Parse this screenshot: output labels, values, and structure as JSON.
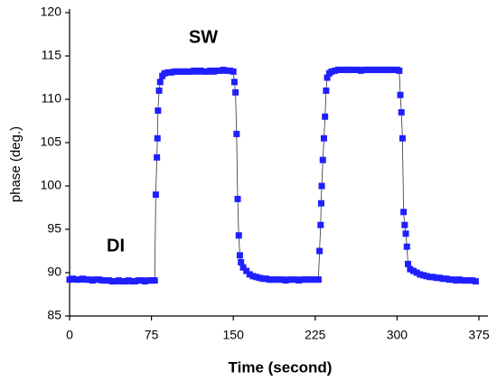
{
  "chart_data": {
    "type": "scatter",
    "x_label": "Time (second)",
    "y_label": "phase (deg.)",
    "annotations": [
      "SW",
      "DI"
    ],
    "xlim": [
      0,
      375
    ],
    "ylim": [
      85,
      120
    ],
    "xticks": [
      0,
      75,
      150,
      225,
      300,
      375
    ],
    "yticks": [
      85,
      90,
      95,
      100,
      105,
      110,
      115,
      120
    ],
    "grid": false,
    "series": [
      {
        "color": "#1f1fff",
        "x": [
          0,
          3,
          6,
          9,
          12,
          15,
          18,
          21,
          24,
          27,
          30,
          33,
          36,
          39,
          42,
          45,
          48,
          51,
          54,
          57,
          60,
          63,
          66,
          69,
          72,
          75,
          78,
          79,
          80,
          80.5,
          81,
          82,
          83,
          85,
          87,
          90,
          93,
          96,
          99,
          102,
          105,
          108,
          111,
          114,
          117,
          120,
          123,
          126,
          129,
          132,
          135,
          138,
          141,
          144,
          147,
          150,
          151,
          152,
          153,
          154,
          155,
          156,
          157,
          159,
          162,
          165,
          168,
          171,
          174,
          177,
          180,
          183,
          186,
          189,
          192,
          195,
          198,
          201,
          204,
          207,
          210,
          213,
          216,
          219,
          222,
          225,
          228,
          229,
          230,
          230.5,
          231,
          232,
          233,
          234,
          235,
          236,
          238,
          240,
          243,
          246,
          249,
          252,
          255,
          258,
          261,
          264,
          267,
          270,
          273,
          276,
          279,
          282,
          285,
          288,
          291,
          294,
          297,
          300,
          302,
          303,
          304,
          305,
          306,
          307,
          308,
          309,
          310,
          312,
          315,
          318,
          321,
          324,
          327,
          330,
          333,
          336,
          339,
          342,
          345,
          348,
          351,
          354,
          357,
          360,
          363,
          366,
          369,
          372
        ],
        "values": [
          89.2,
          89.3,
          89.2,
          89.2,
          89.3,
          89.2,
          89.2,
          89.1,
          89.2,
          89.2,
          89.1,
          89.1,
          89.1,
          89.0,
          89.0,
          89.1,
          89.0,
          89.0,
          89.1,
          89.0,
          89.0,
          89.1,
          89.1,
          89.0,
          89.1,
          89.1,
          89.1,
          99,
          103.3,
          105.5,
          108.7,
          111,
          112,
          112.7,
          113,
          113.1,
          113.1,
          113.2,
          113.2,
          113.2,
          113.2,
          113.2,
          113.2,
          113.3,
          113.2,
          113.3,
          113.2,
          113.2,
          113.3,
          113.2,
          113.3,
          113.3,
          113.4,
          113.3,
          113.3,
          113.2,
          112,
          110.8,
          106,
          98.5,
          94.3,
          92,
          91.2,
          90.6,
          90.2,
          89.8,
          89.6,
          89.5,
          89.4,
          89.3,
          89.3,
          89.2,
          89.2,
          89.2,
          89.2,
          89.2,
          89.1,
          89.2,
          89.2,
          89.2,
          89.1,
          89.2,
          89.2,
          89.2,
          89.2,
          89.2,
          89.2,
          92.5,
          95.5,
          98,
          100,
          103,
          105.5,
          108,
          111,
          112.5,
          113,
          113.2,
          113.3,
          113.4,
          113.4,
          113.4,
          113.4,
          113.4,
          113.4,
          113.4,
          113.3,
          113.4,
          113.4,
          113.4,
          113.4,
          113.4,
          113.4,
          113.4,
          113.4,
          113.4,
          113.4,
          113.4,
          113.3,
          110.5,
          108.5,
          105.5,
          97,
          95.5,
          94.5,
          93,
          91,
          90.4,
          90.2,
          90.0,
          89.8,
          89.7,
          89.6,
          89.5,
          89.5,
          89.4,
          89.4,
          89.3,
          89.3,
          89.2,
          89.2,
          89.1,
          89.2,
          89.1,
          89.1,
          89.1,
          89.1,
          89.0
        ]
      }
    ]
  }
}
